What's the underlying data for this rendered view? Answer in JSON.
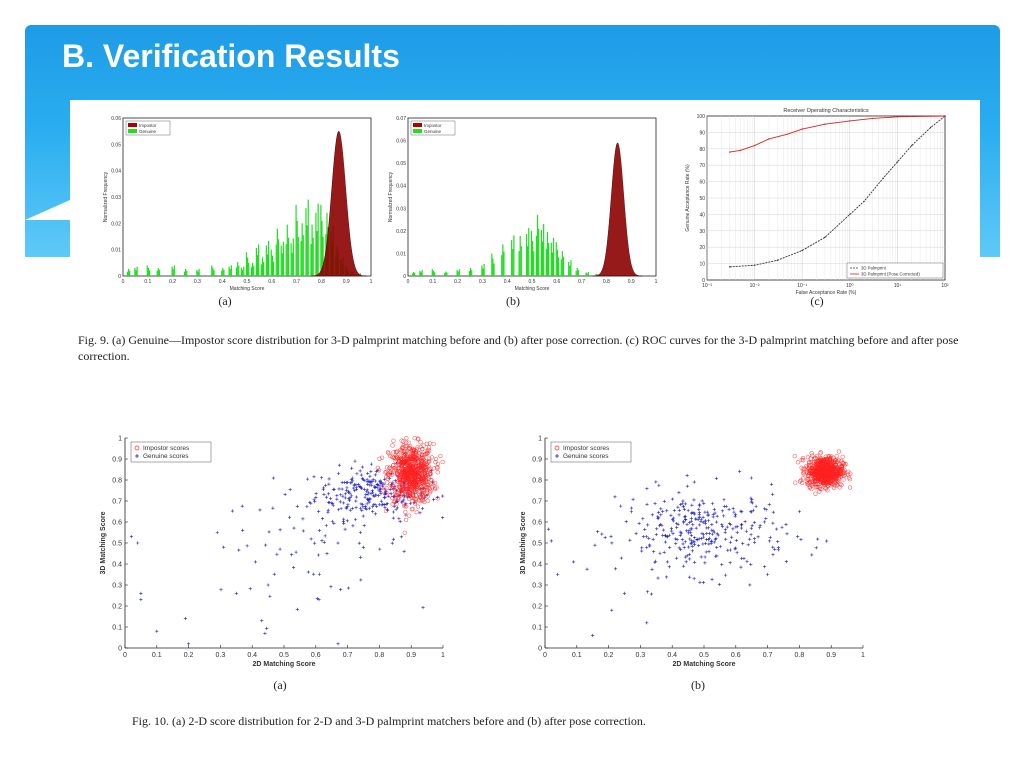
{
  "slide": {
    "title": "B. Verification Results"
  },
  "fig9": {
    "caption": "Fig. 9.   (a) Genuine—Impostor score distribution for 3-D palmprint matching before and (b) after pose correction. (c) ROC curves for the 3-D palmprint matching before and after pose correction.",
    "labels": [
      "(a)",
      "(b)",
      "(c)"
    ]
  },
  "fig10": {
    "caption": "Fig. 10.   (a) 2-D score distribution for 2-D and 3-D palmprint matchers before and (b) after pose correction.",
    "labels": [
      "(a)",
      "(b)"
    ]
  },
  "chart_data": [
    {
      "id": "fig9a",
      "type": "area",
      "xlabel": "Matching Score",
      "ylabel": "Normalized Frequency",
      "xlim": [
        0,
        1
      ],
      "ylim": [
        0,
        0.06
      ],
      "xticks": [
        "0",
        "0.1",
        "0.2",
        "0.3",
        "0.4",
        "0.5",
        "0.6",
        "0.7",
        "0.8",
        "0.9",
        "1"
      ],
      "yticks": [
        "0",
        "0.01",
        "0.02",
        "0.03",
        "0.04",
        "0.05",
        "0.06"
      ],
      "legend": [
        "Impostor",
        "Genuine"
      ],
      "legend_position": "top-left",
      "colors": {
        "impostor": "#b00000",
        "genuine": "#22dd22"
      },
      "series": [
        {
          "name": "Impostor",
          "shape": "gaussian",
          "center": 0.87,
          "spread": 0.028,
          "peak": 0.055
        },
        {
          "name": "Genuine",
          "shape": "spiky",
          "bins": [
            [
              0.02,
              0.003
            ],
            [
              0.05,
              0.004
            ],
            [
              0.1,
              0.004
            ],
            [
              0.14,
              0.003
            ],
            [
              0.2,
              0.004
            ],
            [
              0.25,
              0.003
            ],
            [
              0.3,
              0.003
            ],
            [
              0.36,
              0.004
            ],
            [
              0.4,
              0.003
            ],
            [
              0.43,
              0.004
            ],
            [
              0.46,
              0.006
            ],
            [
              0.48,
              0.004
            ],
            [
              0.5,
              0.009
            ],
            [
              0.52,
              0.005
            ],
            [
              0.54,
              0.012
            ],
            [
              0.56,
              0.008
            ],
            [
              0.58,
              0.015
            ],
            [
              0.6,
              0.01
            ],
            [
              0.62,
              0.018
            ],
            [
              0.64,
              0.013
            ],
            [
              0.66,
              0.022
            ],
            [
              0.68,
              0.016
            ],
            [
              0.7,
              0.027
            ],
            [
              0.72,
              0.02
            ],
            [
              0.74,
              0.029
            ],
            [
              0.76,
              0.022
            ],
            [
              0.78,
              0.031
            ],
            [
              0.8,
              0.027
            ],
            [
              0.82,
              0.024
            ],
            [
              0.84,
              0.019
            ],
            [
              0.86,
              0.013
            ],
            [
              0.88,
              0.008
            ],
            [
              0.9,
              0.004
            ],
            [
              0.92,
              0.002
            ],
            [
              0.95,
              0.001
            ]
          ]
        }
      ]
    },
    {
      "id": "fig9b",
      "type": "area",
      "xlabel": "Matching Score",
      "ylabel": "Normalized Frequency",
      "xlim": [
        0,
        1
      ],
      "ylim": [
        0,
        0.07
      ],
      "xticks": [
        "0",
        "0.1",
        "0.2",
        "0.3",
        "0.4",
        "0.5",
        "0.6",
        "0.7",
        "0.8",
        "0.9",
        "1"
      ],
      "yticks": [
        "0",
        "0.01",
        "0.02",
        "0.03",
        "0.04",
        "0.05",
        "0.06",
        "0.07"
      ],
      "legend": [
        "Impostor",
        "Genuine"
      ],
      "legend_position": "top-left",
      "colors": {
        "impostor": "#b00000",
        "genuine": "#22dd22"
      },
      "series": [
        {
          "name": "Impostor",
          "shape": "gaussian",
          "center": 0.845,
          "spread": 0.025,
          "peak": 0.059
        },
        {
          "name": "Genuine",
          "shape": "spiky",
          "bins": [
            [
              0.02,
              0.002
            ],
            [
              0.05,
              0.003
            ],
            [
              0.1,
              0.003
            ],
            [
              0.15,
              0.002
            ],
            [
              0.2,
              0.003
            ],
            [
              0.25,
              0.004
            ],
            [
              0.3,
              0.006
            ],
            [
              0.34,
              0.01
            ],
            [
              0.38,
              0.014
            ],
            [
              0.42,
              0.018
            ],
            [
              0.45,
              0.02
            ],
            [
              0.48,
              0.024
            ],
            [
              0.5,
              0.02
            ],
            [
              0.52,
              0.027
            ],
            [
              0.54,
              0.023
            ],
            [
              0.56,
              0.022
            ],
            [
              0.58,
              0.019
            ],
            [
              0.6,
              0.015
            ],
            [
              0.62,
              0.011
            ],
            [
              0.65,
              0.007
            ],
            [
              0.68,
              0.004
            ],
            [
              0.72,
              0.002
            ],
            [
              0.76,
              0.001
            ]
          ]
        }
      ]
    },
    {
      "id": "fig9c",
      "type": "line",
      "title": "Receiver Operating Characteristics",
      "xlabel": "False Acceptance Rate (%)",
      "ylabel": "Genuine Acceptance Rate (%)",
      "xscale": "log",
      "xlim": [
        0.001,
        100
      ],
      "ylim": [
        0,
        100
      ],
      "xticks": [
        "10⁻³",
        "10⁻²",
        "10⁻¹",
        "10⁰",
        "10¹",
        "10²"
      ],
      "yticks": [
        "0",
        "10",
        "20",
        "30",
        "40",
        "50",
        "60",
        "70",
        "80",
        "90",
        "100"
      ],
      "grid": true,
      "legend_position": "bottom-right",
      "series": [
        {
          "name": "3D Palmprint",
          "color": "#333333",
          "x": [
            0.003,
            0.01,
            0.03,
            0.1,
            0.3,
            1,
            2,
            5,
            10,
            20,
            50,
            100
          ],
          "y": [
            8,
            9,
            12,
            18,
            26,
            40,
            48,
            62,
            72,
            82,
            93,
            100
          ]
        },
        {
          "name": "3D Palmprint (Pose Corrected)",
          "color": "#dd2222",
          "x": [
            0.003,
            0.005,
            0.01,
            0.02,
            0.05,
            0.1,
            0.3,
            1,
            3,
            10,
            100
          ],
          "y": [
            78,
            79,
            82,
            86,
            89,
            92,
            95,
            97,
            98.5,
            99.5,
            100
          ]
        }
      ]
    },
    {
      "id": "fig10a",
      "type": "scatter",
      "xlabel": "2D Matching Score",
      "ylabel": "3D Matching Score",
      "xlim": [
        0,
        1
      ],
      "ylim": [
        0,
        1
      ],
      "xticks": [
        "0",
        "0.1",
        "0.2",
        "0.3",
        "0.4",
        "0.5",
        "0.6",
        "0.7",
        "0.8",
        "0.9",
        "1"
      ],
      "yticks": [
        "0",
        "0.1",
        "0.2",
        "0.3",
        "0.4",
        "0.5",
        "0.6",
        "0.7",
        "0.8",
        "0.9",
        "1"
      ],
      "legend": [
        "Impostor scores",
        "Genuine scores"
      ],
      "legend_position": "top-left",
      "series": [
        {
          "name": "Impostor scores",
          "marker": "circle",
          "color": "#ff2020",
          "clusters": [
            {
              "cx": 0.9,
              "cy": 0.83,
              "sx": 0.035,
              "sy": 0.07,
              "n": 700
            }
          ]
        },
        {
          "name": "Genuine scores",
          "marker": "plus",
          "color": "#2020cc",
          "clusters": [
            {
              "cx": 0.78,
              "cy": 0.74,
              "sx": 0.09,
              "sy": 0.06,
              "n": 260
            },
            {
              "cx": 0.6,
              "cy": 0.5,
              "sx": 0.15,
              "sy": 0.12,
              "n": 70
            }
          ],
          "outliers": [
            [
              0.02,
              0.53
            ],
            [
              0.04,
              0.5
            ],
            [
              0.05,
              0.26
            ],
            [
              0.05,
              0.23
            ],
            [
              0.1,
              0.08
            ],
            [
              0.19,
              0.14
            ],
            [
              0.2,
              0.02
            ],
            [
              0.29,
              0.55
            ],
            [
              0.31,
              0.48
            ],
            [
              0.37,
              0.56
            ],
            [
              0.41,
              0.41
            ],
            [
              0.43,
              0.13
            ],
            [
              0.44,
              0.07
            ],
            [
              0.35,
              0.26
            ],
            [
              0.45,
              0.3
            ],
            [
              0.61,
              0.23
            ],
            [
              0.67,
              0.02
            ]
          ]
        }
      ]
    },
    {
      "id": "fig10b",
      "type": "scatter",
      "xlabel": "2D Matching Score",
      "ylabel": "3D Matching Score",
      "xlim": [
        0,
        1
      ],
      "ylim": [
        0,
        1
      ],
      "xticks": [
        "0",
        "0.1",
        "0.2",
        "0.3",
        "0.4",
        "0.5",
        "0.6",
        "0.7",
        "0.8",
        "0.9",
        "1"
      ],
      "yticks": [
        "0",
        "0.1",
        "0.2",
        "0.3",
        "0.4",
        "0.5",
        "0.6",
        "0.7",
        "0.8",
        "0.9",
        "1"
      ],
      "legend": [
        "Impostor scores",
        "Genuine scores"
      ],
      "legend_position": "top-left",
      "series": [
        {
          "name": "Impostor scores",
          "marker": "circle",
          "color": "#ff2020",
          "clusters": [
            {
              "cx": 0.88,
              "cy": 0.84,
              "sx": 0.028,
              "sy": 0.035,
              "n": 700
            }
          ]
        },
        {
          "name": "Genuine scores",
          "marker": "plus",
          "color": "#2020cc",
          "clusters": [
            {
              "cx": 0.5,
              "cy": 0.55,
              "sx": 0.13,
              "sy": 0.1,
              "n": 330
            }
          ],
          "outliers": [
            [
              0.02,
              0.51
            ],
            [
              0.04,
              0.35
            ],
            [
              0.09,
              0.41
            ],
            [
              0.15,
              0.06
            ],
            [
              0.21,
              0.18
            ],
            [
              0.25,
              0.26
            ],
            [
              0.22,
              0.72
            ],
            [
              0.32,
              0.12
            ],
            [
              0.7,
              0.35
            ],
            [
              0.8,
              0.65
            ]
          ]
        }
      ]
    }
  ]
}
